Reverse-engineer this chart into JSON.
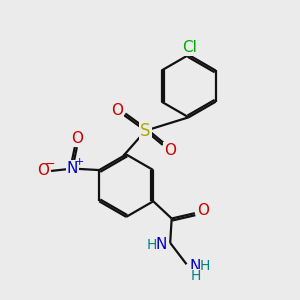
{
  "bg_color": "#ebebeb",
  "bond_color": "#111111",
  "bond_width": 1.6,
  "dbo": 0.07,
  "atom_colors": {
    "H": "#008080",
    "N": "#0000cc",
    "O": "#cc0000",
    "S": "#aaaa00",
    "Cl": "#00aa00"
  }
}
